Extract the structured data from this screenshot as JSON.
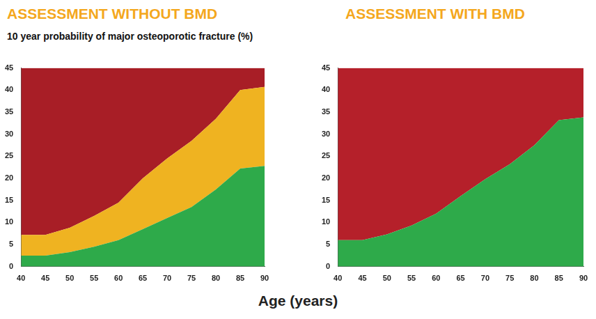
{
  "chart_data": [
    {
      "type": "area",
      "title": "ASSESSMENT WITHOUT BMD",
      "subtitle": "10 year probability of major osteoporotic fracture (%)",
      "stacked": true,
      "grid": false,
      "x": [
        40,
        45,
        50,
        55,
        60,
        65,
        70,
        75,
        80,
        85,
        90
      ],
      "xlim": [
        40,
        90
      ],
      "xticks": [
        40,
        45,
        50,
        55,
        60,
        65,
        70,
        75,
        80,
        85,
        90
      ],
      "ylim": [
        0,
        45
      ],
      "yticks": [
        0,
        5,
        10,
        15,
        20,
        25,
        30,
        35,
        40,
        45
      ],
      "series": [
        {
          "color": "#2eaa4a",
          "values": [
            2.5,
            2.5,
            3.3,
            4.5,
            6,
            8.5,
            11,
            13.5,
            17.5,
            22.2,
            22.8
          ]
        },
        {
          "color": "#efb321",
          "values": [
            4.7,
            4.7,
            5.5,
            7,
            8.5,
            11.5,
            13.5,
            15,
            16,
            17.8,
            17.9
          ]
        },
        {
          "color": "#a81e26",
          "values": [
            37.8,
            37.8,
            36.2,
            33.5,
            30.5,
            25,
            20.5,
            16.5,
            11.5,
            5,
            4.3
          ]
        }
      ]
    },
    {
      "type": "area",
      "title": "ASSESSMENT WITH BMD",
      "stacked": true,
      "grid": false,
      "x": [
        40,
        45,
        50,
        55,
        60,
        65,
        70,
        75,
        80,
        85,
        90
      ],
      "xlim": [
        40,
        90
      ],
      "xticks": [
        40,
        45,
        50,
        55,
        60,
        65,
        70,
        75,
        80,
        85,
        90
      ],
      "ylim": [
        0,
        45
      ],
      "yticks": [
        0,
        5,
        10,
        15,
        20,
        25,
        30,
        35,
        40,
        45
      ],
      "series": [
        {
          "color": "#2eaa4a",
          "values": [
            6,
            6,
            7.3,
            9.3,
            12,
            16,
            19.8,
            23.2,
            27.5,
            33.2,
            33.8
          ]
        },
        {
          "color": "#b5202a",
          "values": [
            39,
            39,
            37.7,
            35.7,
            33,
            29,
            25.2,
            21.8,
            17.5,
            11.8,
            11.2
          ]
        }
      ]
    }
  ],
  "xlabel": "Age (years)"
}
